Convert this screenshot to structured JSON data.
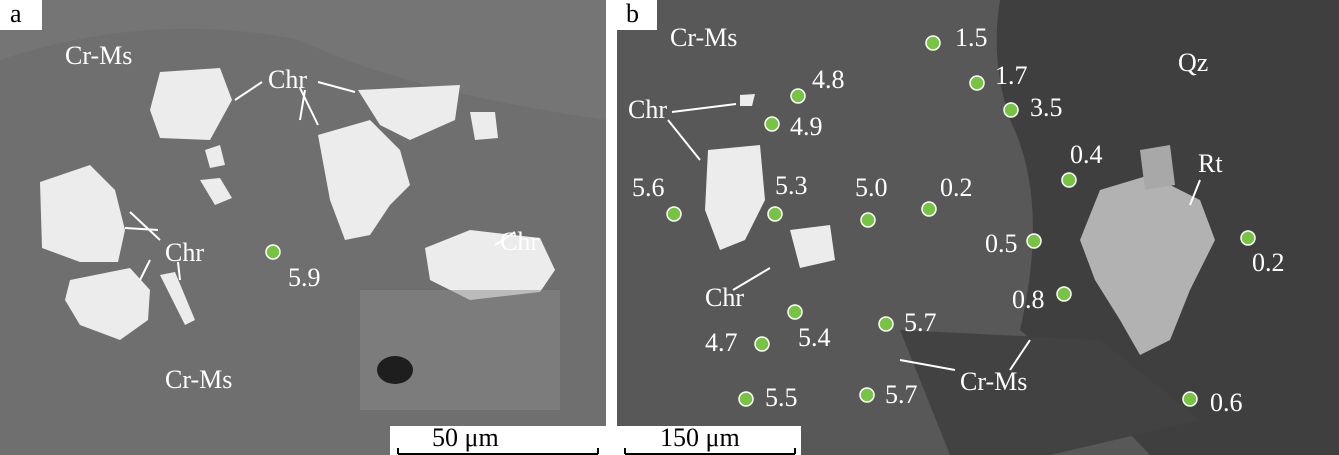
{
  "panels": [
    {
      "label": "a",
      "minerals": [
        "Cr-Ms",
        "Chr",
        "Chr",
        "Chr",
        "Cr-Ms"
      ],
      "points": [
        "5.9"
      ],
      "scale_bar": "50 μm"
    },
    {
      "label": "b",
      "minerals": [
        "Cr-Ms",
        "Chr",
        "Chr",
        "Cr-Ms",
        "Qz",
        "Rt"
      ],
      "points": [
        "1.5",
        "1.7",
        "4.8",
        "3.5",
        "4.9",
        "0.4",
        "5.3",
        "5.0",
        "0.2",
        "5.6",
        "0.5",
        "0.2",
        "0.8",
        "5.4",
        "5.7",
        "4.7",
        "5.5",
        "5.7",
        "0.6"
      ],
      "scale_bar": "150 μm"
    }
  ]
}
